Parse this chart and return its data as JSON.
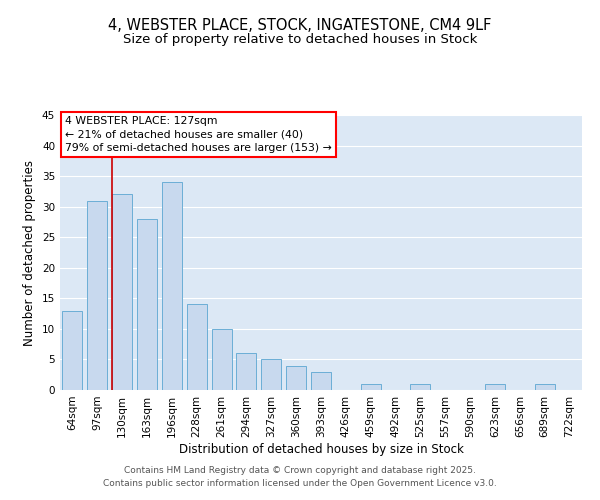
{
  "title1": "4, WEBSTER PLACE, STOCK, INGATESTONE, CM4 9LF",
  "title2": "Size of property relative to detached houses in Stock",
  "xlabel": "Distribution of detached houses by size in Stock",
  "ylabel": "Number of detached properties",
  "categories": [
    "64sqm",
    "97sqm",
    "130sqm",
    "163sqm",
    "196sqm",
    "228sqm",
    "261sqm",
    "294sqm",
    "327sqm",
    "360sqm",
    "393sqm",
    "426sqm",
    "459sqm",
    "492sqm",
    "525sqm",
    "557sqm",
    "590sqm",
    "623sqm",
    "656sqm",
    "689sqm",
    "722sqm"
  ],
  "values": [
    13,
    31,
    32,
    28,
    34,
    14,
    10,
    6,
    5,
    4,
    3,
    0,
    1,
    0,
    1,
    0,
    0,
    1,
    0,
    1,
    0
  ],
  "bar_color": "#c8d9ee",
  "bar_edge_color": "#6baed6",
  "vline_color": "#cc0000",
  "vline_x_index": 2,
  "annotation_line1": "4 WEBSTER PLACE: 127sqm",
  "annotation_line2": "← 21% of detached houses are smaller (40)",
  "annotation_line3": "79% of semi-detached houses are larger (153) →",
  "annotation_box_color": "white",
  "annotation_box_edge_color": "red",
  "ylim": [
    0,
    45
  ],
  "yticks": [
    0,
    5,
    10,
    15,
    20,
    25,
    30,
    35,
    40,
    45
  ],
  "plot_bg_color": "#dce8f5",
  "fig_bg_color": "#ffffff",
  "grid_color": "#ffffff",
  "footer_line1": "Contains HM Land Registry data © Crown copyright and database right 2025.",
  "footer_line2": "Contains public sector information licensed under the Open Government Licence v3.0.",
  "title1_fontsize": 10.5,
  "title2_fontsize": 9.5,
  "axis_label_fontsize": 8.5,
  "tick_fontsize": 7.5,
  "annotation_fontsize": 7.8,
  "footer_fontsize": 6.5
}
